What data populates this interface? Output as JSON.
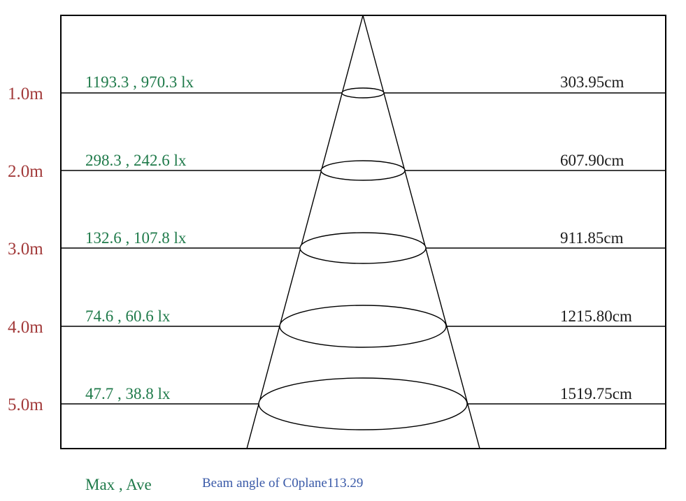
{
  "legend": "Max , Ave",
  "beam_angle_label": "Beam angle of C0plane113.29",
  "colors": {
    "distance": "#a23a3a",
    "illuminance": "#1f7a4a",
    "diameter": "#1a1a1a",
    "beam_angle": "#3a5aa8"
  },
  "levels": [
    {
      "distance": "1.0m",
      "illuminance": "1193.3 , 970.3 lx",
      "diameter": "303.95cm"
    },
    {
      "distance": "2.0m",
      "illuminance": "298.3 , 242.6 lx",
      "diameter": "607.90cm"
    },
    {
      "distance": "3.0m",
      "illuminance": "132.6 , 107.8 lx",
      "diameter": "911.85cm"
    },
    {
      "distance": "4.0m",
      "illuminance": "74.6 , 60.6 lx",
      "diameter": "1215.80cm"
    },
    {
      "distance": "5.0m",
      "illuminance": "47.7 , 38.8 lx",
      "diameter": "1519.75cm"
    }
  ]
}
